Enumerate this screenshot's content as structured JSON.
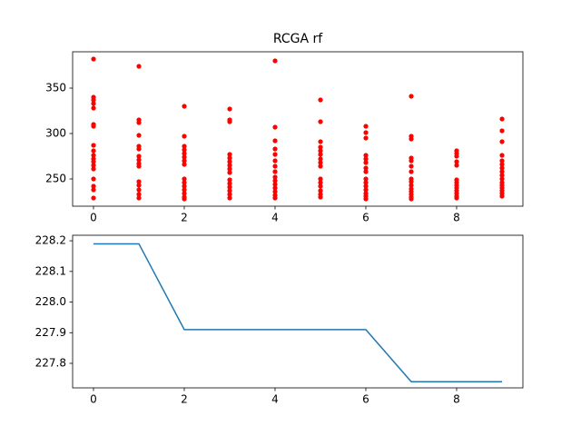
{
  "chart_data": [
    {
      "type": "scatter",
      "title": "RCGA rf",
      "color": "#ff0000",
      "x": [
        0,
        0,
        0,
        0,
        0,
        0,
        0,
        0,
        0,
        0,
        0,
        0,
        0,
        0,
        0,
        0,
        0,
        0,
        1,
        1,
        1,
        1,
        1,
        1,
        1,
        1,
        1,
        1,
        1,
        1,
        1,
        1,
        1,
        2,
        2,
        2,
        2,
        2,
        2,
        2,
        2,
        2,
        2,
        2,
        2,
        2,
        2,
        2,
        3,
        3,
        3,
        3,
        3,
        3,
        3,
        3,
        3,
        3,
        3,
        3,
        3,
        3,
        3,
        4,
        4,
        4,
        4,
        4,
        4,
        4,
        4,
        4,
        4,
        4,
        4,
        4,
        4,
        4,
        5,
        5,
        5,
        5,
        5,
        5,
        5,
        5,
        5,
        5,
        5,
        5,
        5,
        5,
        5,
        6,
        6,
        6,
        6,
        6,
        6,
        6,
        6,
        6,
        6,
        6,
        6,
        6,
        6,
        6,
        7,
        7,
        7,
        7,
        7,
        7,
        7,
        7,
        7,
        7,
        7,
        7,
        7,
        7,
        7,
        8,
        8,
        8,
        8,
        8,
        8,
        8,
        8,
        8,
        8,
        8,
        8,
        8,
        9,
        9,
        9,
        9,
        9,
        9,
        9,
        9,
        9,
        9,
        9,
        9,
        9,
        9,
        9,
        9
      ],
      "y": [
        382,
        340,
        337,
        333,
        328,
        310,
        308,
        287,
        281,
        276,
        272,
        269,
        265,
        261,
        250,
        242,
        238,
        229,
        374,
        315,
        312,
        298,
        286,
        283,
        275,
        271,
        267,
        264,
        247,
        243,
        238,
        233,
        229,
        330,
        297,
        286,
        282,
        278,
        274,
        270,
        266,
        250,
        246,
        242,
        238,
        234,
        230,
        228,
        327,
        315,
        313,
        277,
        273,
        269,
        265,
        261,
        257,
        249,
        245,
        241,
        237,
        233,
        229,
        380,
        307,
        292,
        283,
        277,
        270,
        264,
        258,
        252,
        248,
        244,
        240,
        236,
        232,
        229,
        337,
        313,
        291,
        285,
        281,
        277,
        272,
        268,
        264,
        250,
        246,
        242,
        237,
        233,
        230,
        308,
        301,
        295,
        276,
        272,
        268,
        262,
        258,
        250,
        246,
        242,
        238,
        234,
        231,
        228,
        341,
        297,
        294,
        273,
        270,
        264,
        258,
        250,
        247,
        243,
        239,
        236,
        233,
        230,
        228,
        281,
        278,
        275,
        269,
        265,
        249,
        246,
        243,
        240,
        237,
        234,
        231,
        229,
        316,
        303,
        291,
        276,
        270,
        266,
        262,
        258,
        254,
        250,
        246,
        243,
        240,
        237,
        234,
        231
      ],
      "xlim": [
        -0.46,
        9.46
      ],
      "ylim": [
        220,
        390
      ],
      "xticks": [
        0,
        2,
        4,
        6,
        8
      ],
      "yticks": [
        250,
        300,
        350
      ]
    },
    {
      "type": "line",
      "color": "#1f77b4",
      "x": [
        0,
        1,
        2,
        3,
        4,
        5,
        6,
        7,
        8,
        9
      ],
      "y": [
        228.19,
        228.19,
        227.91,
        227.91,
        227.91,
        227.91,
        227.91,
        227.74,
        227.74,
        227.74
      ],
      "xlim": [
        -0.46,
        9.46
      ],
      "ylim": [
        227.72,
        228.218
      ],
      "xticks": [
        0,
        2,
        4,
        6,
        8
      ],
      "yticks": [
        227.8,
        227.9,
        {
          "value": 228,
          "label": "228.0"
        },
        228.1,
        228.2
      ]
    }
  ]
}
